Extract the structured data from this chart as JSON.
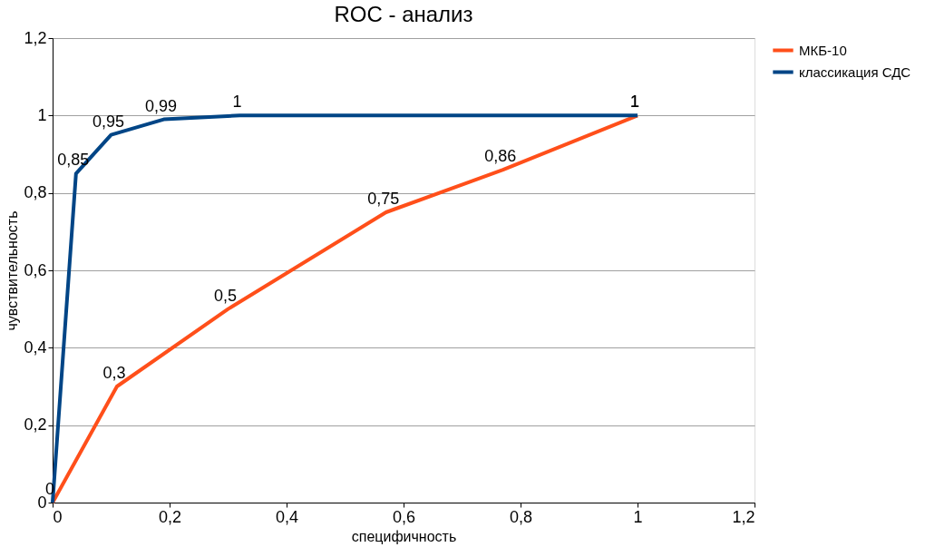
{
  "chart_data": {
    "type": "line",
    "title": "ROC - анализ",
    "xlabel": "специфичность",
    "ylabel": "чувствительность",
    "xlim": [
      0,
      1.2
    ],
    "ylim": [
      0,
      1.2
    ],
    "xticks": [
      0,
      {
        "value": 0.2,
        "label": "0,2"
      },
      {
        "value": 0.4,
        "label": "0,4"
      },
      {
        "value": 0.6,
        "label": "0,6"
      },
      {
        "value": 0.8,
        "label": "0,8"
      },
      1,
      {
        "value": 1.2,
        "label": "1,2"
      }
    ],
    "yticks": [
      0,
      {
        "value": 0.2,
        "label": "0,2"
      },
      {
        "value": 0.4,
        "label": "0,4"
      },
      {
        "value": 0.6,
        "label": "0,6"
      },
      {
        "value": 0.8,
        "label": "0,8"
      },
      1,
      {
        "value": 1.2,
        "label": "1,2"
      }
    ],
    "grid": "y",
    "legend": "right",
    "marker": "none",
    "line_style": "solid",
    "series": [
      {
        "name": "МКБ-10",
        "color": "#ff4f1a",
        "x": [
          0,
          0.11,
          0.3,
          0.57,
          0.77,
          1
        ],
        "values": [
          0,
          0.3,
          0.5,
          0.75,
          0.86,
          1
        ],
        "value_labels": [
          null,
          "0,3",
          "0,5",
          "0,75",
          "0,86",
          "1"
        ]
      },
      {
        "name": "классикация СДС",
        "color": "#004586",
        "x": [
          0,
          0.04,
          0.1,
          0.19,
          0.32,
          1
        ],
        "values": [
          0,
          0.85,
          0.95,
          0.99,
          1,
          1
        ],
        "value_labels": [
          "0",
          "0,85",
          "0,95",
          "0,99",
          "1",
          "1"
        ]
      }
    ]
  }
}
